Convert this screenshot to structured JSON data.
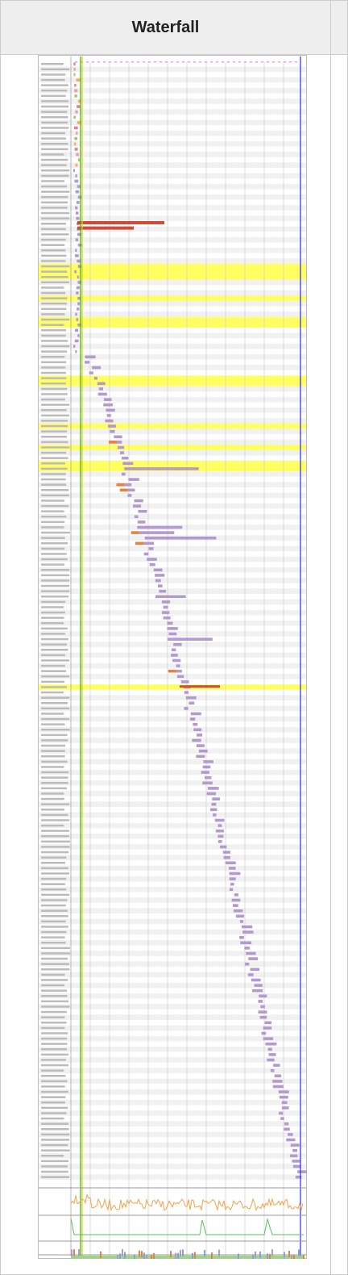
{
  "header": {
    "title": "Waterfall"
  }
}
